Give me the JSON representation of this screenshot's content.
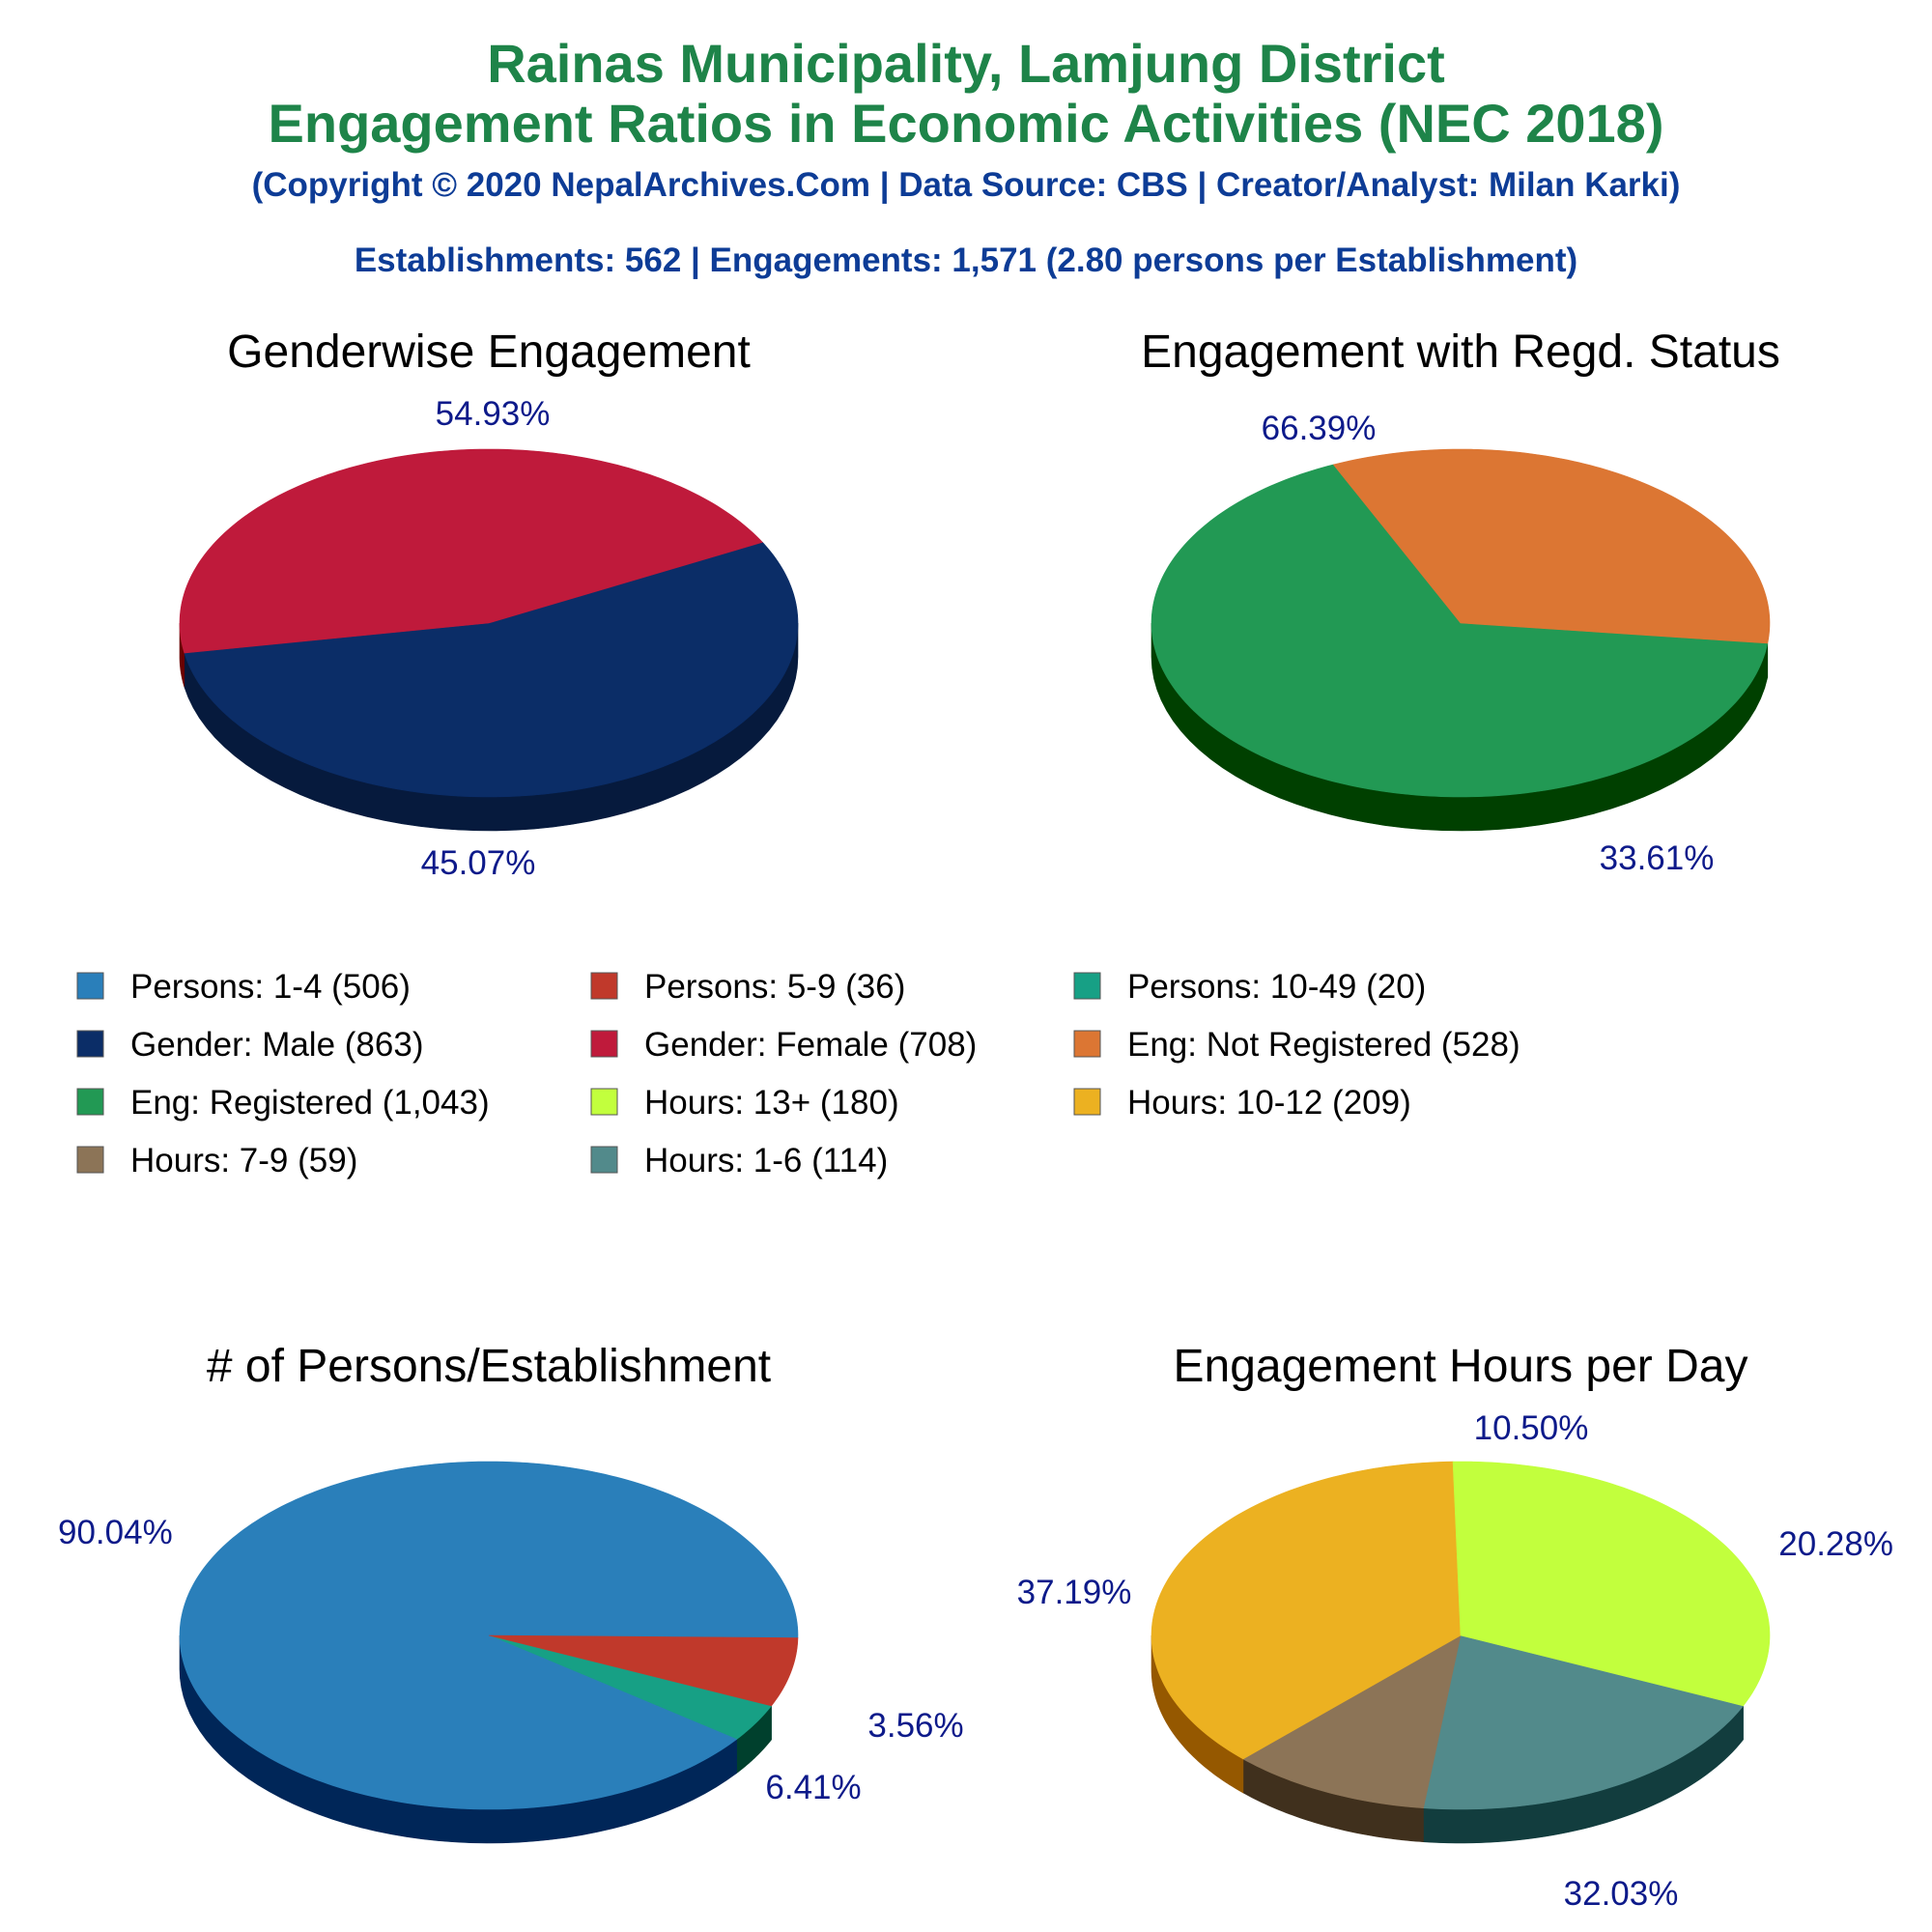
{
  "header": {
    "title_line1": "Rainas Municipality, Lamjung District",
    "title_line2": "Engagement Ratios in Economic Activities (NEC 2018)",
    "copyright": "(Copyright © 2020 NepalArchives.Com | Data Source: CBS | Creator/Analyst: Milan Karki)",
    "summary": "Establishments: 562 | Engagements: 1,571 (2.80 persons per Establishment)"
  },
  "legend": [
    {
      "label": "Persons: 1-4 (506)",
      "color": "#2a7fba"
    },
    {
      "label": "Persons: 5-9 (36)",
      "color": "#c0392b"
    },
    {
      "label": "Persons: 10-49 (20)",
      "color": "#17a085"
    },
    {
      "label": "Gender: Male (863)",
      "color": "#0b2d67"
    },
    {
      "label": "Gender: Female (708)",
      "color": "#bf1a3b"
    },
    {
      "label": "Eng: Not Registered (528)",
      "color": "#dc7633"
    },
    {
      "label": "Eng: Registered (1,043)",
      "color": "#229954"
    },
    {
      "label": "Hours: 13+ (180)",
      "color": "#c2ff3d"
    },
    {
      "label": "Hours: 10-12 (209)",
      "color": "#ecb121"
    },
    {
      "label": "Hours: 7-9 (59)",
      "color": "#8c7457"
    },
    {
      "label": "Hours: 1-6 (114)",
      "color": "#528a8b"
    }
  ],
  "chart_data": [
    {
      "type": "pie",
      "title": "Genderwise Engagement",
      "slices": [
        {
          "name": "Gender: Male",
          "value": 863,
          "pct_label": "54.93%",
          "color": "#0b2d67",
          "side": "#061a3d"
        },
        {
          "name": "Gender: Female",
          "value": 708,
          "pct_label": "45.07%",
          "color": "#bf1a3b",
          "side": "#690000"
        }
      ]
    },
    {
      "type": "pie",
      "title": "Engagement with Regd. Status",
      "slices": [
        {
          "name": "Eng: Registered",
          "value": 1043,
          "pct_label": "66.39%",
          "color": "#229954",
          "side": "#004000"
        },
        {
          "name": "Eng: Not Registered",
          "value": 528,
          "pct_label": "33.61%",
          "color": "#dc7633",
          "side": "#7b1a00"
        }
      ]
    },
    {
      "type": "pie",
      "title": "# of Persons/Establishment",
      "slices": [
        {
          "name": "Persons: 10-49",
          "value": 20,
          "pct_label": "3.56%",
          "color": "#17a085",
          "side": "#00402d"
        },
        {
          "name": "Persons: 1-4",
          "value": 506,
          "pct_label": "90.04%",
          "color": "#2a7fba",
          "side": "#002658"
        },
        {
          "name": "Persons: 5-9",
          "value": 36,
          "pct_label": "6.41%",
          "color": "#c0392b",
          "side": "#690000"
        }
      ]
    },
    {
      "type": "pie",
      "title": "Engagement Hours per Day",
      "slices": [
        {
          "name": "Hours: 1-6",
          "value": 114,
          "pct_label": "20.28%",
          "color": "#528a8b",
          "side": "#123d3e"
        },
        {
          "name": "Hours: 7-9",
          "value": 59,
          "pct_label": "10.50%",
          "color": "#8c7457",
          "side": "#40301d"
        },
        {
          "name": "Hours: 10-12",
          "value": 209,
          "pct_label": "37.19%",
          "color": "#ecb121",
          "side": "#955800"
        },
        {
          "name": "Hours: 13+",
          "value": 180,
          "pct_label": "32.03%",
          "color": "#c2ff3d",
          "side": "#64a300"
        }
      ]
    }
  ]
}
